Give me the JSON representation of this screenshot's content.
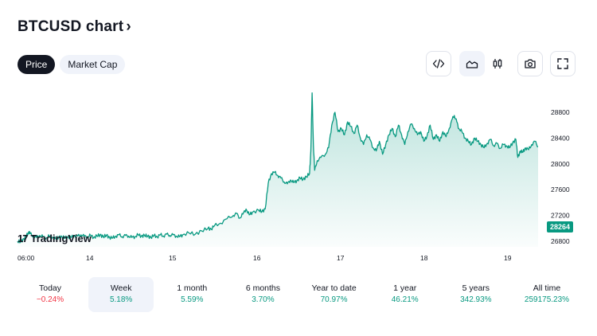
{
  "header": {
    "title": "BTCUSD chart",
    "chevron": "›"
  },
  "tabs": [
    {
      "label": "Price",
      "active": true
    },
    {
      "label": "Market Cap",
      "active": false
    }
  ],
  "toolbar": {
    "buttons": [
      {
        "icon": "embed-code-icon"
      },
      {
        "icon": "area-chart-icon",
        "selected": true
      },
      {
        "icon": "candlestick-icon"
      },
      {
        "icon": "camera-icon"
      },
      {
        "icon": "fullscreen-icon"
      }
    ]
  },
  "chart_data": {
    "type": "area",
    "x_tick_labels": [
      "06:00",
      "14",
      "15",
      "16",
      "17",
      "18",
      "19"
    ],
    "y_tick_labels": [
      "28800",
      "28400",
      "28000",
      "27600",
      "27200",
      "26800"
    ],
    "ylim": [
      26700,
      29200
    ],
    "current_price": "28264",
    "line_color": "#089981",
    "fill_color": "#089981",
    "grid": false,
    "points": [
      [
        0,
        26800
      ],
      [
        0.05,
        26790
      ],
      [
        0.1,
        26840
      ],
      [
        0.14,
        26880
      ],
      [
        0.18,
        26950
      ],
      [
        0.2,
        26920
      ],
      [
        0.25,
        26870
      ],
      [
        0.3,
        26860
      ],
      [
        0.35,
        26890
      ],
      [
        0.4,
        26870
      ],
      [
        0.45,
        26850
      ],
      [
        0.5,
        26880
      ],
      [
        0.55,
        26860
      ],
      [
        0.6,
        26840
      ],
      [
        0.65,
        26860
      ],
      [
        0.7,
        26870
      ],
      [
        0.75,
        26850
      ],
      [
        0.8,
        26870
      ],
      [
        0.85,
        26860
      ],
      [
        0.9,
        26890
      ],
      [
        0.95,
        26880
      ],
      [
        1.0,
        26900
      ],
      [
        1.05,
        26880
      ],
      [
        1.1,
        26870
      ],
      [
        1.15,
        26890
      ],
      [
        1.2,
        26860
      ],
      [
        1.25,
        26880
      ],
      [
        1.3,
        26900
      ],
      [
        1.35,
        26870
      ],
      [
        1.4,
        26890
      ],
      [
        1.45,
        26860
      ],
      [
        1.5,
        26850
      ],
      [
        1.55,
        26880
      ],
      [
        1.6,
        26900
      ],
      [
        1.65,
        26870
      ],
      [
        1.7,
        26890
      ],
      [
        1.75,
        26880
      ],
      [
        1.8,
        26860
      ],
      [
        1.85,
        26870
      ],
      [
        1.9,
        26900
      ],
      [
        1.95,
        26880
      ],
      [
        2.0,
        26890
      ],
      [
        2.05,
        26880
      ],
      [
        2.1,
        26860
      ],
      [
        2.15,
        26890
      ],
      [
        2.2,
        26870
      ],
      [
        2.25,
        26900
      ],
      [
        2.3,
        26880
      ],
      [
        2.35,
        26910
      ],
      [
        2.4,
        26890
      ],
      [
        2.45,
        26900
      ],
      [
        2.5,
        26880
      ],
      [
        2.55,
        26870
      ],
      [
        2.6,
        26900
      ],
      [
        2.7,
        26930
      ],
      [
        2.8,
        26910
      ],
      [
        2.9,
        26960
      ],
      [
        3.0,
        27000
      ],
      [
        3.05,
        26990
      ],
      [
        3.1,
        27040
      ],
      [
        3.2,
        27080
      ],
      [
        3.3,
        27150
      ],
      [
        3.4,
        27200
      ],
      [
        3.45,
        27230
      ],
      [
        3.5,
        27160
      ],
      [
        3.55,
        27220
      ],
      [
        3.6,
        27300
      ],
      [
        3.65,
        27210
      ],
      [
        3.7,
        27250
      ],
      [
        3.8,
        27280
      ],
      [
        3.85,
        27260
      ],
      [
        3.9,
        27300
      ],
      [
        3.95,
        27700
      ],
      [
        4.0,
        27850
      ],
      [
        4.05,
        27870
      ],
      [
        4.1,
        27820
      ],
      [
        4.15,
        27780
      ],
      [
        4.2,
        27720
      ],
      [
        4.25,
        27690
      ],
      [
        4.3,
        27750
      ],
      [
        4.35,
        27710
      ],
      [
        4.4,
        27740
      ],
      [
        4.45,
        27780
      ],
      [
        4.5,
        27760
      ],
      [
        4.55,
        27800
      ],
      [
        4.6,
        27850
      ],
      [
        4.62,
        28200
      ],
      [
        4.64,
        29100
      ],
      [
        4.66,
        28300
      ],
      [
        4.68,
        27900
      ],
      [
        4.72,
        28050
      ],
      [
        4.78,
        28100
      ],
      [
        4.85,
        28150
      ],
      [
        4.9,
        28250
      ],
      [
        4.95,
        28600
      ],
      [
        5.0,
        28800
      ],
      [
        5.05,
        28500
      ],
      [
        5.1,
        28550
      ],
      [
        5.15,
        28450
      ],
      [
        5.2,
        28650
      ],
      [
        5.25,
        28580
      ],
      [
        5.3,
        28470
      ],
      [
        5.35,
        28600
      ],
      [
        5.4,
        28400
      ],
      [
        5.45,
        28300
      ],
      [
        5.5,
        28450
      ],
      [
        5.55,
        28380
      ],
      [
        5.6,
        28250
      ],
      [
        5.65,
        28200
      ],
      [
        5.7,
        28350
      ],
      [
        5.75,
        28150
      ],
      [
        5.8,
        28300
      ],
      [
        5.85,
        28450
      ],
      [
        5.9,
        28550
      ],
      [
        5.95,
        28420
      ],
      [
        6.0,
        28600
      ],
      [
        6.05,
        28450
      ],
      [
        6.1,
        28300
      ],
      [
        6.15,
        28500
      ],
      [
        6.2,
        28620
      ],
      [
        6.25,
        28550
      ],
      [
        6.3,
        28450
      ],
      [
        6.35,
        28500
      ],
      [
        6.4,
        28350
      ],
      [
        6.45,
        28430
      ],
      [
        6.5,
        28600
      ],
      [
        6.55,
        28380
      ],
      [
        6.6,
        28450
      ],
      [
        6.65,
        28350
      ],
      [
        6.7,
        28500
      ],
      [
        6.75,
        28420
      ],
      [
        6.8,
        28550
      ],
      [
        6.85,
        28700
      ],
      [
        6.88,
        28750
      ],
      [
        6.92,
        28650
      ],
      [
        6.95,
        28550
      ],
      [
        7.0,
        28500
      ],
      [
        7.05,
        28400
      ],
      [
        7.1,
        28350
      ],
      [
        7.15,
        28300
      ],
      [
        7.2,
        28400
      ],
      [
        7.25,
        28350
      ],
      [
        7.3,
        28300
      ],
      [
        7.35,
        28250
      ],
      [
        7.4,
        28320
      ],
      [
        7.45,
        28380
      ],
      [
        7.5,
        28280
      ],
      [
        7.55,
        28320
      ],
      [
        7.6,
        28240
      ],
      [
        7.65,
        28300
      ],
      [
        7.7,
        28280
      ],
      [
        7.75,
        28250
      ],
      [
        7.8,
        28330
      ],
      [
        7.85,
        28380
      ],
      [
        7.88,
        28100
      ],
      [
        7.92,
        28200
      ],
      [
        7.96,
        28180
      ],
      [
        8.0,
        28250
      ],
      [
        8.05,
        28220
      ],
      [
        8.1,
        28300
      ],
      [
        8.15,
        28350
      ],
      [
        8.2,
        28264
      ]
    ]
  },
  "logo": {
    "text": "TradingView",
    "mark": "17"
  },
  "periods": [
    {
      "label": "Today",
      "value": "−0.24%",
      "trend": "down",
      "selected": false
    },
    {
      "label": "Week",
      "value": "5.18%",
      "trend": "up",
      "selected": true
    },
    {
      "label": "1 month",
      "value": "5.59%",
      "trend": "up",
      "selected": false
    },
    {
      "label": "6 months",
      "value": "3.70%",
      "trend": "up",
      "selected": false
    },
    {
      "label": "Year to date",
      "value": "70.97%",
      "trend": "up",
      "selected": false
    },
    {
      "label": "1 year",
      "value": "46.21%",
      "trend": "up",
      "selected": false
    },
    {
      "label": "5 years",
      "value": "342.93%",
      "trend": "up",
      "selected": false
    },
    {
      "label": "All time",
      "value": "259175.23%",
      "trend": "up",
      "selected": false
    }
  ]
}
